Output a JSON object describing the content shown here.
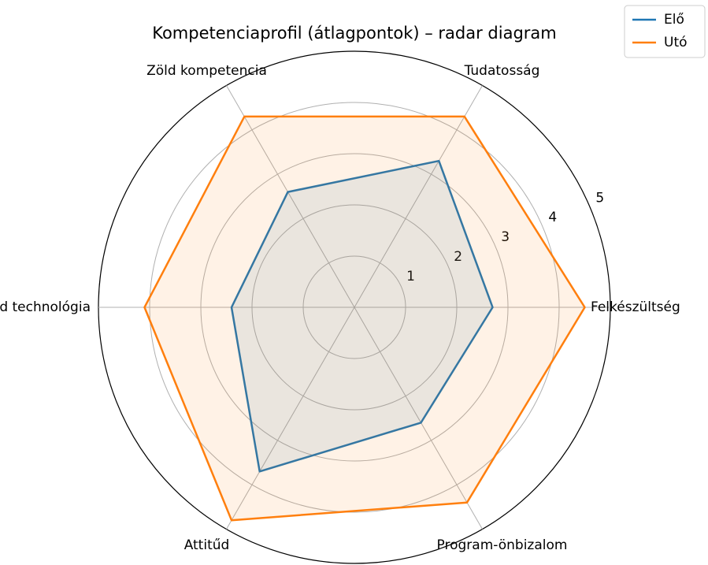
{
  "chart_data": {
    "type": "radar",
    "title": "Kompetenciaprofil (átlagpontok) – radar diagram",
    "categories": [
      "Felkészültség",
      "Tudatosság",
      "Zöld kompetencia",
      "Zöld technológia",
      "Attitűd",
      "Program-önbizalom"
    ],
    "series": [
      {
        "name": "Elő",
        "color": "#1f77b4",
        "values": [
          2.7,
          3.3,
          2.6,
          2.4,
          3.7,
          2.6
        ]
      },
      {
        "name": "Utó",
        "color": "#ff7f0e",
        "values": [
          4.5,
          4.3,
          4.3,
          4.1,
          4.8,
          4.4
        ]
      }
    ],
    "rlim": [
      0,
      5
    ],
    "rticks": [
      1,
      2,
      3,
      4,
      5
    ],
    "grid": true,
    "legend": "upper right"
  }
}
